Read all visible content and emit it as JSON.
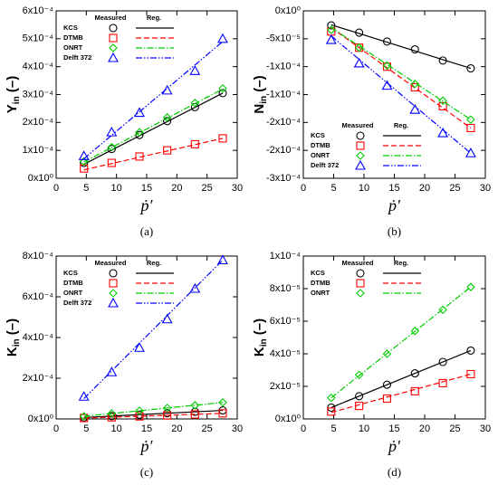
{
  "chart_data": [
    {
      "type": "line",
      "caption": "(a)",
      "ylabel": "Y",
      "ylabel_sub": "in",
      "ylabel_unit": " (–)",
      "xlabel": "ṗ′",
      "xlim": [
        0,
        30
      ],
      "xticks": [
        0,
        5,
        10,
        15,
        20,
        25,
        30
      ],
      "ylim": [
        0,
        0.0006
      ],
      "yticks": [
        {
          "value": 0,
          "label": "0x10⁰"
        },
        {
          "value": 0.0001,
          "label": "1x10⁻⁴"
        },
        {
          "value": 0.0002,
          "label": "2x10⁻⁴"
        },
        {
          "value": 0.0003,
          "label": "3x10⁻⁴"
        },
        {
          "value": 0.0004,
          "label": "4x10⁻⁴"
        },
        {
          "value": 0.0005,
          "label": "5x10⁻⁴"
        },
        {
          "value": 0.0006,
          "label": "6x10⁻⁴"
        }
      ],
      "legend": "upper left",
      "legend_headers": [
        "Measured",
        "Reg."
      ],
      "x": [
        4.6,
        9.2,
        13.8,
        18.4,
        23,
        27.6
      ],
      "reg_x": [
        4.6,
        27.6
      ],
      "series": [
        {
          "name": "KCS",
          "color": "#000000",
          "marker": "circle",
          "linestyle": "solid",
          "values": [
            5.5e-05,
            0.000105,
            0.000155,
            0.000205,
            0.000255,
            0.000305
          ],
          "reg": [
            5e-05,
            0.000305
          ]
        },
        {
          "name": "DTMB",
          "color": "#ff0000",
          "marker": "square",
          "linestyle": "dashed",
          "values": [
            3.5e-05,
            5.5e-05,
            7.8e-05,
            0.0001,
            0.000122,
            0.000143
          ],
          "reg": [
            3e-05,
            0.000143
          ]
        },
        {
          "name": "ONRT",
          "color": "#00cc00",
          "marker": "diamond",
          "linestyle": "dashdot",
          "values": [
            6e-05,
            0.000112,
            0.000165,
            0.000218,
            0.00027,
            0.000322
          ],
          "reg": [
            5.8e-05,
            0.00032
          ]
        },
        {
          "name": "Delft 372",
          "color": "#0000ff",
          "marker": "triangle",
          "linestyle": "dashdotdot",
          "values": [
            8e-05,
            0.000165,
            0.000235,
            0.000315,
            0.000385,
            0.0005
          ],
          "reg": [
            7e-05,
            0.00049
          ]
        }
      ]
    },
    {
      "type": "line",
      "caption": "(b)",
      "ylabel": "N",
      "ylabel_sub": "in",
      "ylabel_unit": " (–)",
      "xlabel": "ṗ′",
      "xlim": [
        0,
        30
      ],
      "xticks": [
        0,
        5,
        10,
        15,
        20,
        25,
        30
      ],
      "ylim": [
        -0.0003,
        0
      ],
      "yticks": [
        {
          "value": 0,
          "label": "0x10⁰"
        },
        {
          "value": -5e-05,
          "label": "-5x10⁻⁵"
        },
        {
          "value": -0.0001,
          "label": "-1x10⁻⁴"
        },
        {
          "value": -0.00015,
          "label": "-1x10⁻⁴"
        },
        {
          "value": -0.0002,
          "label": "-2x10⁻⁴"
        },
        {
          "value": -0.00025,
          "label": "-2x10⁻⁴"
        },
        {
          "value": -0.0003,
          "label": "-3x10⁻⁴"
        }
      ],
      "legend": "lower left",
      "legend_headers": [
        "Measured",
        "Reg."
      ],
      "x": [
        4.6,
        9.2,
        13.8,
        18.4,
        23,
        27.6
      ],
      "reg_x": [
        4.6,
        27.6
      ],
      "series": [
        {
          "name": "KCS",
          "color": "#000000",
          "marker": "circle",
          "linestyle": "solid",
          "values": [
            -2.6e-05,
            -3.9e-05,
            -5.5e-05,
            -6.9e-05,
            -8.9e-05,
            -0.000103
          ],
          "reg": [
            -2.5e-05,
            -0.000103
          ]
        },
        {
          "name": "DTMB",
          "color": "#ff0000",
          "marker": "square",
          "linestyle": "dashed",
          "values": [
            -3.7e-05,
            -6.6e-05,
            -0.0001,
            -0.000137,
            -0.000171,
            -0.00021
          ],
          "reg": [
            -3e-05,
            -0.00021
          ]
        },
        {
          "name": "ONRT",
          "color": "#00cc00",
          "marker": "diamond",
          "linestyle": "dashdot",
          "values": [
            -3.4e-05,
            -6.6e-05,
            -9.8e-05,
            -0.000131,
            -0.000161,
            -0.000195
          ],
          "reg": [
            -3e-05,
            -0.000195
          ]
        },
        {
          "name": "Delft 372",
          "color": "#0000ff",
          "marker": "triangle",
          "linestyle": "dashdotdot",
          "values": [
            -5.2e-05,
            -9.4e-05,
            -0.000134,
            -0.000177,
            -0.000219,
            -0.000255
          ],
          "reg": [
            -4.5e-05,
            -0.000255
          ]
        }
      ]
    },
    {
      "type": "line",
      "caption": "(c)",
      "ylabel": "K",
      "ylabel_sub": "in",
      "ylabel_unit": " (–)",
      "xlabel": "ṗ′",
      "xlim": [
        0,
        30
      ],
      "xticks": [
        0,
        5,
        10,
        15,
        20,
        25,
        30
      ],
      "ylim": [
        0,
        0.0008
      ],
      "yticks": [
        {
          "value": 0,
          "label": "0x10⁰"
        },
        {
          "value": 0.0002,
          "label": "2x10⁻⁴"
        },
        {
          "value": 0.0004,
          "label": "4x10⁻⁴"
        },
        {
          "value": 0.0006,
          "label": "6x10⁻⁴"
        },
        {
          "value": 0.0008,
          "label": "8x10⁻⁴"
        }
      ],
      "legend": "upper left",
      "legend_headers": [
        "Measured",
        "Reg."
      ],
      "x": [
        4.6,
        9.2,
        13.8,
        18.4,
        23,
        27.6
      ],
      "reg_x": [
        4.6,
        27.6
      ],
      "series": [
        {
          "name": "KCS",
          "color": "#000000",
          "marker": "circle",
          "linestyle": "solid",
          "values": [
            7e-06,
            1.4e-05,
            2.1e-05,
            2.8e-05,
            3.5e-05,
            4.2e-05
          ],
          "reg": [
            7e-06,
            4.2e-05
          ]
        },
        {
          "name": "DTMB",
          "color": "#ff0000",
          "marker": "square",
          "linestyle": "dashed",
          "values": [
            4.5e-06,
            8e-06,
            1.25e-05,
            1.7e-05,
            2.2e-05,
            2.75e-05
          ],
          "reg": [
            4e-06,
            2.75e-05
          ]
        },
        {
          "name": "ONRT",
          "color": "#00cc00",
          "marker": "diamond",
          "linestyle": "dashdot",
          "values": [
            1.3e-05,
            2.7e-05,
            4e-05,
            5.4e-05,
            6.7e-05,
            8.1e-05
          ],
          "reg": [
            1.3e-05,
            8.1e-05
          ]
        },
        {
          "name": "Delft 372",
          "color": "#0000ff",
          "marker": "triangle",
          "linestyle": "dashdotdot",
          "values": [
            0.00011,
            0.00023,
            0.00035,
            0.00049,
            0.00064,
            0.00078
          ],
          "reg": [
            0.0001,
            0.00078
          ]
        }
      ]
    },
    {
      "type": "line",
      "caption": "(d)",
      "ylabel": "K",
      "ylabel_sub": "in",
      "ylabel_unit": " (–)",
      "xlabel": "ṗ′",
      "xlim": [
        0,
        30
      ],
      "xticks": [
        0,
        5,
        10,
        15,
        20,
        25,
        30
      ],
      "ylim": [
        0,
        0.0001
      ],
      "yticks": [
        {
          "value": 0,
          "label": "0x10⁰"
        },
        {
          "value": 2e-05,
          "label": "2x10⁻⁵"
        },
        {
          "value": 4e-05,
          "label": "4x10⁻⁵"
        },
        {
          "value": 6e-05,
          "label": "6x10⁻⁵"
        },
        {
          "value": 8e-05,
          "label": "8x10⁻⁵"
        },
        {
          "value": 0.0001,
          "label": "1x10⁻⁴"
        }
      ],
      "legend": "upper left",
      "legend_headers": [
        "Measured",
        "Reg."
      ],
      "x": [
        4.6,
        9.2,
        13.8,
        18.4,
        23,
        27.6
      ],
      "reg_x": [
        4.6,
        27.6
      ],
      "series": [
        {
          "name": "KCS",
          "color": "#000000",
          "marker": "circle",
          "linestyle": "solid",
          "values": [
            7e-06,
            1.4e-05,
            2.1e-05,
            2.8e-05,
            3.5e-05,
            4.2e-05
          ],
          "reg": [
            7e-06,
            4.2e-05
          ]
        },
        {
          "name": "DTMB",
          "color": "#ff0000",
          "marker": "square",
          "linestyle": "dashed",
          "values": [
            4.5e-06,
            8e-06,
            1.25e-05,
            1.7e-05,
            2.2e-05,
            2.75e-05
          ],
          "reg": [
            4e-06,
            2.75e-05
          ]
        },
        {
          "name": "ONRT",
          "color": "#00cc00",
          "marker": "diamond",
          "linestyle": "dashdot",
          "values": [
            1.3e-05,
            2.7e-05,
            4e-05,
            5.4e-05,
            6.7e-05,
            8.1e-05
          ],
          "reg": [
            1.3e-05,
            8.1e-05
          ]
        }
      ]
    }
  ]
}
